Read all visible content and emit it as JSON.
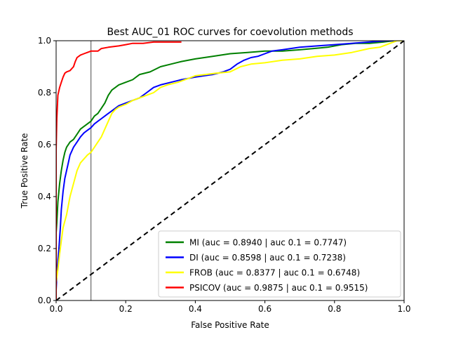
{
  "chart_data": {
    "type": "line",
    "title": "Best AUC_01 ROC curves for coevolution methods",
    "xlabel": "False Positive Rate",
    "ylabel": "True Positive Rate",
    "xlim": [
      0,
      1
    ],
    "ylim": [
      0,
      1
    ],
    "xticks": [
      "0.0",
      "0.2",
      "0.4",
      "0.6",
      "0.8",
      "1.0"
    ],
    "yticks": [
      "0.0",
      "0.2",
      "0.4",
      "0.6",
      "0.8",
      "1.0"
    ],
    "grid": false,
    "legend_position": "lower-right",
    "reference_vline": {
      "x": 0.1,
      "color": "#808080"
    },
    "diagonal": {
      "points": [
        [
          0,
          0
        ],
        [
          1,
          1
        ]
      ],
      "color": "#000000",
      "style": "dashed"
    },
    "series": [
      {
        "name": "MI (auc = 0.8940 | auc 0.1 = 0.7747)",
        "color": "#008000",
        "points": [
          [
            0,
            0
          ],
          [
            0,
            0.26
          ],
          [
            0.002,
            0.3
          ],
          [
            0.005,
            0.38
          ],
          [
            0.01,
            0.45
          ],
          [
            0.015,
            0.5
          ],
          [
            0.02,
            0.54
          ],
          [
            0.025,
            0.57
          ],
          [
            0.03,
            0.59
          ],
          [
            0.04,
            0.61
          ],
          [
            0.05,
            0.62
          ],
          [
            0.06,
            0.64
          ],
          [
            0.07,
            0.66
          ],
          [
            0.08,
            0.67
          ],
          [
            0.09,
            0.68
          ],
          [
            0.1,
            0.69
          ],
          [
            0.11,
            0.71
          ],
          [
            0.12,
            0.72
          ],
          [
            0.13,
            0.74
          ],
          [
            0.14,
            0.76
          ],
          [
            0.15,
            0.79
          ],
          [
            0.16,
            0.81
          ],
          [
            0.18,
            0.83
          ],
          [
            0.2,
            0.84
          ],
          [
            0.22,
            0.85
          ],
          [
            0.24,
            0.87
          ],
          [
            0.27,
            0.88
          ],
          [
            0.3,
            0.9
          ],
          [
            0.33,
            0.91
          ],
          [
            0.36,
            0.92
          ],
          [
            0.4,
            0.93
          ],
          [
            0.45,
            0.94
          ],
          [
            0.5,
            0.95
          ],
          [
            0.55,
            0.955
          ],
          [
            0.6,
            0.96
          ],
          [
            0.65,
            0.96
          ],
          [
            0.7,
            0.965
          ],
          [
            0.74,
            0.97
          ],
          [
            0.78,
            0.975
          ],
          [
            0.82,
            0.985
          ],
          [
            0.86,
            0.99
          ],
          [
            0.9,
            0.99
          ],
          [
            0.94,
            0.995
          ],
          [
            0.97,
            1.0
          ],
          [
            1.0,
            1.0
          ]
        ]
      },
      {
        "name": "DI (auc = 0.8598 | auc 0.1 = 0.7238)",
        "color": "#0000ff",
        "points": [
          [
            0,
            0
          ],
          [
            0,
            0.04
          ],
          [
            0.003,
            0.12
          ],
          [
            0.008,
            0.2
          ],
          [
            0.012,
            0.28
          ],
          [
            0.015,
            0.35
          ],
          [
            0.02,
            0.42
          ],
          [
            0.025,
            0.47
          ],
          [
            0.03,
            0.5
          ],
          [
            0.035,
            0.53
          ],
          [
            0.04,
            0.56
          ],
          [
            0.05,
            0.59
          ],
          [
            0.06,
            0.61
          ],
          [
            0.07,
            0.63
          ],
          [
            0.08,
            0.645
          ],
          [
            0.09,
            0.655
          ],
          [
            0.1,
            0.665
          ],
          [
            0.11,
            0.68
          ],
          [
            0.12,
            0.69
          ],
          [
            0.13,
            0.7
          ],
          [
            0.14,
            0.71
          ],
          [
            0.15,
            0.72
          ],
          [
            0.16,
            0.73
          ],
          [
            0.18,
            0.75
          ],
          [
            0.2,
            0.76
          ],
          [
            0.22,
            0.77
          ],
          [
            0.24,
            0.78
          ],
          [
            0.26,
            0.8
          ],
          [
            0.28,
            0.82
          ],
          [
            0.3,
            0.83
          ],
          [
            0.33,
            0.84
          ],
          [
            0.36,
            0.85
          ],
          [
            0.4,
            0.86
          ],
          [
            0.45,
            0.87
          ],
          [
            0.48,
            0.88
          ],
          [
            0.5,
            0.89
          ],
          [
            0.52,
            0.91
          ],
          [
            0.54,
            0.925
          ],
          [
            0.56,
            0.935
          ],
          [
            0.58,
            0.94
          ],
          [
            0.6,
            0.95
          ],
          [
            0.62,
            0.96
          ],
          [
            0.65,
            0.965
          ],
          [
            0.7,
            0.975
          ],
          [
            0.75,
            0.98
          ],
          [
            0.8,
            0.985
          ],
          [
            0.85,
            0.99
          ],
          [
            0.9,
            0.995
          ],
          [
            0.95,
            1.0
          ],
          [
            1.0,
            1.0
          ]
        ]
      },
      {
        "name": "FROB (auc = 0.8377 | auc 0.1 = 0.6748)",
        "color": "#ffff00",
        "points": [
          [
            0,
            0
          ],
          [
            0,
            0.07
          ],
          [
            0.005,
            0.12
          ],
          [
            0.01,
            0.18
          ],
          [
            0.015,
            0.23
          ],
          [
            0.02,
            0.28
          ],
          [
            0.03,
            0.33
          ],
          [
            0.04,
            0.4
          ],
          [
            0.05,
            0.45
          ],
          [
            0.06,
            0.5
          ],
          [
            0.07,
            0.53
          ],
          [
            0.08,
            0.545
          ],
          [
            0.09,
            0.56
          ],
          [
            0.1,
            0.57
          ],
          [
            0.11,
            0.59
          ],
          [
            0.12,
            0.61
          ],
          [
            0.13,
            0.63
          ],
          [
            0.14,
            0.66
          ],
          [
            0.15,
            0.69
          ],
          [
            0.16,
            0.72
          ],
          [
            0.17,
            0.735
          ],
          [
            0.18,
            0.745
          ],
          [
            0.2,
            0.755
          ],
          [
            0.22,
            0.77
          ],
          [
            0.24,
            0.78
          ],
          [
            0.26,
            0.79
          ],
          [
            0.28,
            0.8
          ],
          [
            0.3,
            0.82
          ],
          [
            0.32,
            0.83
          ],
          [
            0.35,
            0.84
          ],
          [
            0.38,
            0.855
          ],
          [
            0.4,
            0.865
          ],
          [
            0.43,
            0.87
          ],
          [
            0.46,
            0.875
          ],
          [
            0.5,
            0.88
          ],
          [
            0.53,
            0.9
          ],
          [
            0.56,
            0.91
          ],
          [
            0.6,
            0.915
          ],
          [
            0.65,
            0.925
          ],
          [
            0.7,
            0.93
          ],
          [
            0.75,
            0.94
          ],
          [
            0.8,
            0.945
          ],
          [
            0.85,
            0.955
          ],
          [
            0.9,
            0.97
          ],
          [
            0.93,
            0.975
          ],
          [
            0.96,
            0.99
          ],
          [
            0.98,
            1.0
          ],
          [
            1.0,
            1.0
          ]
        ]
      },
      {
        "name": "PSICOV (auc = 0.9875 | auc 0.1 = 0.9515)",
        "color": "#ff0000",
        "points": [
          [
            0,
            0
          ],
          [
            0,
            0.58
          ],
          [
            0.002,
            0.7
          ],
          [
            0.005,
            0.79
          ],
          [
            0.01,
            0.82
          ],
          [
            0.015,
            0.84
          ],
          [
            0.02,
            0.86
          ],
          [
            0.025,
            0.875
          ],
          [
            0.03,
            0.88
          ],
          [
            0.04,
            0.885
          ],
          [
            0.05,
            0.9
          ],
          [
            0.055,
            0.92
          ],
          [
            0.06,
            0.935
          ],
          [
            0.07,
            0.945
          ],
          [
            0.08,
            0.95
          ],
          [
            0.09,
            0.955
          ],
          [
            0.1,
            0.96
          ],
          [
            0.12,
            0.96
          ],
          [
            0.13,
            0.97
          ],
          [
            0.15,
            0.975
          ],
          [
            0.18,
            0.98
          ],
          [
            0.2,
            0.985
          ],
          [
            0.22,
            0.99
          ],
          [
            0.25,
            0.99
          ],
          [
            0.28,
            0.995
          ],
          [
            0.32,
            0.995
          ],
          [
            0.36,
            0.995
          ]
        ]
      }
    ]
  }
}
